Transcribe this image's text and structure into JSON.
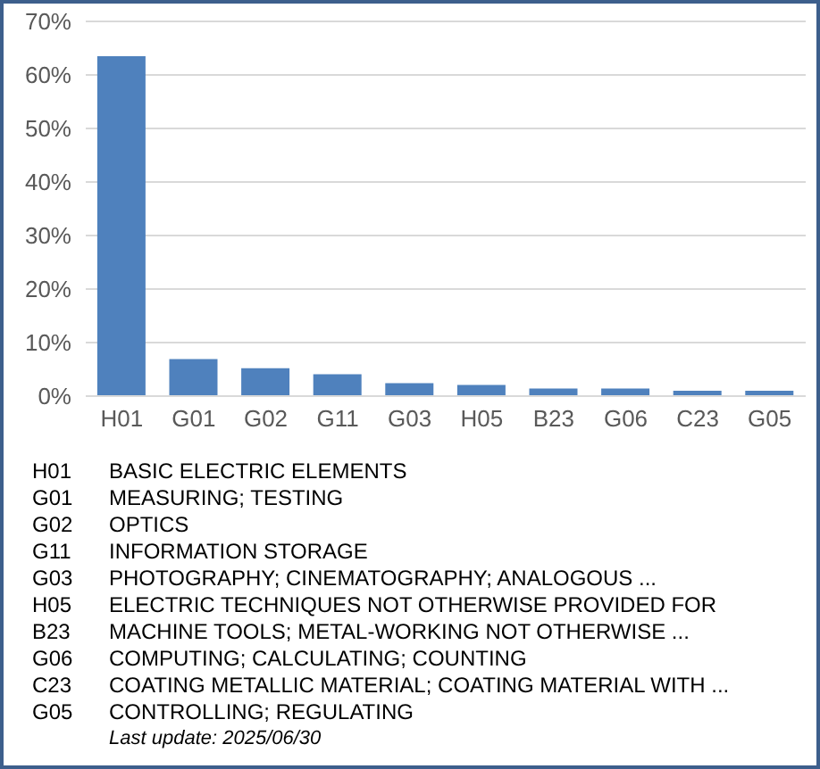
{
  "chart_data": {
    "type": "bar",
    "categories": [
      "H01",
      "G01",
      "G02",
      "G11",
      "G03",
      "H05",
      "B23",
      "G06",
      "C23",
      "G05"
    ],
    "values": [
      63.5,
      6.9,
      5.2,
      4.1,
      2.4,
      2.1,
      1.4,
      1.4,
      1.0,
      1.0
    ],
    "color": "#4f81bd",
    "ylim": [
      0,
      70
    ],
    "yticks": [
      {
        "value": 0,
        "label": "0%"
      },
      {
        "value": 10,
        "label": "10%"
      },
      {
        "value": 20,
        "label": "20%"
      },
      {
        "value": 30,
        "label": "30%"
      },
      {
        "value": 40,
        "label": "40%"
      },
      {
        "value": 50,
        "label": "50%"
      },
      {
        "value": 60,
        "label": "60%"
      },
      {
        "value": 70,
        "label": "70%"
      }
    ],
    "grid": "y",
    "annotations": [
      "BASIC ELECTRIC ELEMENTS",
      "MEASURING; TESTING",
      "OPTICS",
      "INFORMATION STORAGE",
      "PHOTOGRAPHY; CINEMATOGRAPHY; ANALOGOUS ...",
      "ELECTRIC TECHNIQUES NOT OTHERWISE PROVIDED FOR",
      "MACHINE TOOLS; METAL-WORKING NOT OTHERWISE ...",
      "COMPUTING; CALCULATING; COUNTING",
      "COATING METALLIC MATERIAL; COATING MATERIAL WITH ...",
      "CONTROLLING; REGULATING",
      "Last update:  2025/06/30"
    ]
  }
}
